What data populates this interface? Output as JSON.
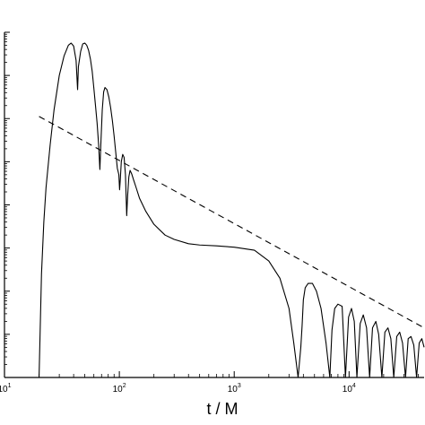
{
  "chart_data": {
    "type": "line",
    "title": "",
    "xlabel": "t / M",
    "ylabel": "",
    "xscale": "log",
    "yscale": "log",
    "xlim": [
      10,
      45000
    ],
    "ylim": [
      -8,
      0
    ],
    "grid": false,
    "legend": "none",
    "x_tick_labels": [
      {
        "x": 10,
        "base": "10",
        "exp": "1"
      },
      {
        "x": 100,
        "base": "10",
        "exp": "2"
      },
      {
        "x": 1000,
        "base": "10",
        "exp": "3"
      },
      {
        "x": 10000,
        "base": "10",
        "exp": "4"
      }
    ],
    "series": [
      {
        "style": "solid",
        "color": "#000000",
        "x": [
          20,
          21,
          22,
          23,
          25,
          27,
          30,
          33,
          36,
          38,
          40,
          42,
          43.3,
          44,
          46,
          48,
          50,
          52,
          54,
          56,
          58,
          60,
          62,
          64,
          66,
          67.7,
          69,
          71,
          73,
          75,
          78,
          81,
          84,
          87,
          90,
          93,
          96,
          99,
          100.5,
          102,
          104,
          107,
          110,
          113,
          115.9,
          118,
          121,
          124,
          128,
          133,
          140,
          150,
          170,
          200,
          250,
          300,
          400,
          500,
          700,
          1000,
          1500,
          2000,
          2500,
          3000,
          3300,
          3600,
          3800,
          3900,
          4000,
          4150,
          4400,
          4800,
          5200,
          5700,
          6300,
          6800,
          7100,
          7500,
          8000,
          8700,
          9300,
          9900,
          10500,
          11100,
          11700,
          12500,
          13300,
          14200,
          15100,
          16000,
          17100,
          18100,
          19300,
          20500,
          21800,
          23100,
          24500,
          26000,
          27600,
          29200,
          31000,
          32700,
          34600,
          36600,
          38700,
          40800,
          43000,
          45000
        ],
        "y": [
          -8,
          -5.6,
          -4.4,
          -3.6,
          -2.6,
          -1.8,
          -1.0,
          -0.55,
          -0.3,
          -0.25,
          -0.32,
          -0.65,
          -1.33,
          -0.8,
          -0.45,
          -0.27,
          -0.25,
          -0.3,
          -0.42,
          -0.62,
          -0.9,
          -1.3,
          -1.7,
          -2.1,
          -2.6,
          -3.18,
          -2.6,
          -1.8,
          -1.38,
          -1.28,
          -1.33,
          -1.5,
          -1.75,
          -2.05,
          -2.4,
          -2.78,
          -3.15,
          -3.3,
          -3.65,
          -3.4,
          -3.0,
          -2.83,
          -2.9,
          -3.3,
          -4.25,
          -3.8,
          -3.35,
          -3.2,
          -3.28,
          -3.42,
          -3.6,
          -3.85,
          -4.15,
          -4.45,
          -4.7,
          -4.8,
          -4.9,
          -4.93,
          -4.95,
          -4.98,
          -5.05,
          -5.3,
          -5.7,
          -6.4,
          -7.2,
          -8,
          -7.3,
          -6.8,
          -6.2,
          -5.92,
          -5.82,
          -5.82,
          -6.0,
          -6.4,
          -7.2,
          -8,
          -6.9,
          -6.4,
          -6.3,
          -6.35,
          -8,
          -6.6,
          -6.4,
          -6.7,
          -8,
          -6.75,
          -6.55,
          -6.85,
          -8,
          -6.85,
          -6.7,
          -7.0,
          -8,
          -6.95,
          -6.85,
          -7.1,
          -8,
          -7.05,
          -6.95,
          -7.2,
          -8,
          -7.1,
          -7.05,
          -7.25,
          -8,
          -7.2,
          -7.1,
          -7.3
        ]
      },
      {
        "style": "dashed",
        "color": "#000000",
        "x": [
          20,
          45000
        ],
        "y": [
          -1.95,
          -6.85
        ]
      }
    ]
  }
}
